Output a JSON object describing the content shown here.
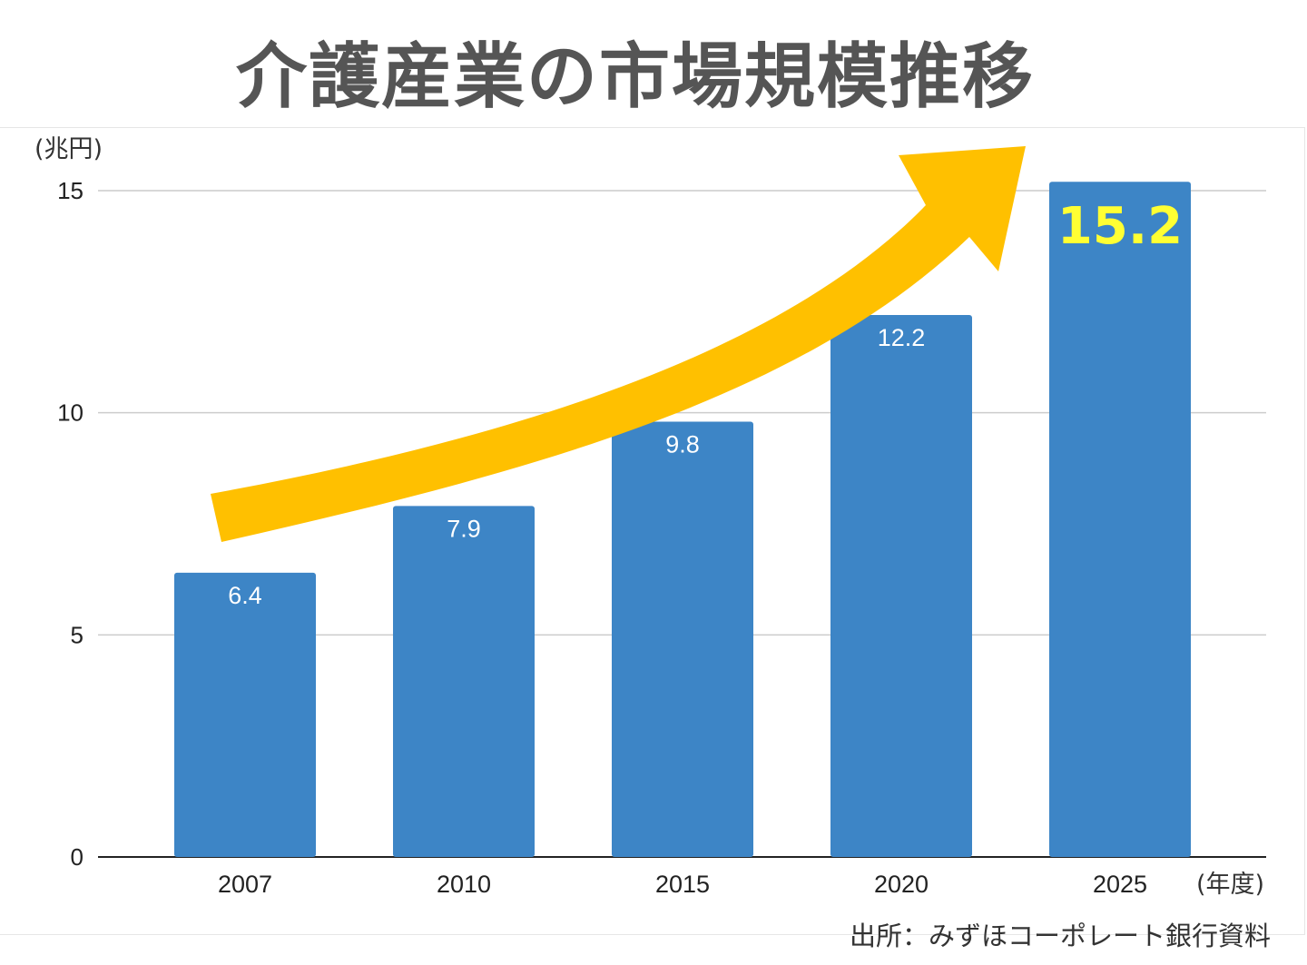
{
  "title": "介護産業の市場規模推移",
  "source": "出所：みずほコーポレート銀行資料",
  "colors": {
    "bar": "#3d85c6",
    "arrow": "#ffc000",
    "highlight_label": "#ffff33",
    "grid": "#cccccc",
    "axis": "#222222"
  },
  "chart_data": {
    "type": "bar",
    "categories": [
      "2007",
      "2010",
      "2015",
      "2020",
      "2025"
    ],
    "values": [
      6.4,
      7.9,
      9.8,
      12.2,
      15.2
    ],
    "data_labels": [
      "6.4",
      "7.9",
      "9.8",
      "12.2",
      "15.2"
    ],
    "highlight_index": 4,
    "title": "介護産業の市場規模推移",
    "ylabel": "(兆円)",
    "xlabel": "(年度)",
    "ylim": [
      0,
      15
    ],
    "yticks": [
      0,
      5,
      10,
      15
    ],
    "grid": true,
    "annotation": "upward-trend-arrow"
  }
}
